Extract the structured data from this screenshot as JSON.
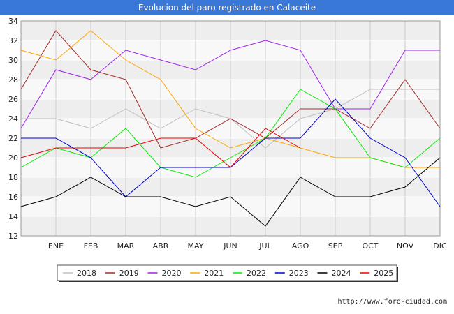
{
  "header": {
    "title": "Evolucion del paro registrado en Calaceite"
  },
  "footer": {
    "url": "http://www.foro-ciudad.com"
  },
  "chart_data": {
    "type": "line",
    "title": "Evolucion del paro registrado en Calaceite",
    "x_categories": [
      "",
      "ENE",
      "FEB",
      "MAR",
      "ABR",
      "MAY",
      "JUN",
      "JUL",
      "AGO",
      "SEP",
      "OCT",
      "NOV",
      "DIC"
    ],
    "ylim": [
      12,
      34
    ],
    "yticks": [
      12,
      14,
      16,
      18,
      20,
      22,
      24,
      26,
      28,
      30,
      32,
      34
    ],
    "grid": true,
    "legend_position": "bottom",
    "series": [
      {
        "name": "2018",
        "color": "#c0c0c0",
        "values": [
          24,
          24,
          23,
          25,
          23,
          25,
          24,
          21,
          24,
          25,
          27,
          27,
          27
        ]
      },
      {
        "name": "2019",
        "color": "#a52a2a",
        "values": [
          27,
          33,
          29,
          28,
          21,
          22,
          24,
          22,
          25,
          25,
          23,
          28,
          23
        ]
      },
      {
        "name": "2020",
        "color": "#a020f0",
        "values": [
          23,
          29,
          28,
          31,
          30,
          29,
          31,
          32,
          31,
          25,
          25,
          31,
          31
        ]
      },
      {
        "name": "2021",
        "color": "#ffa500",
        "values": [
          31,
          30,
          33,
          30,
          28,
          23,
          21,
          22,
          21,
          20,
          20,
          19,
          19
        ]
      },
      {
        "name": "2022",
        "color": "#00ee00",
        "values": [
          19,
          21,
          20,
          23,
          19,
          18,
          20,
          22,
          27,
          25,
          20,
          19,
          22
        ]
      },
      {
        "name": "2023",
        "color": "#0000cd",
        "values": [
          22,
          22,
          20,
          16,
          19,
          19,
          19,
          22,
          22,
          26,
          22,
          20,
          15
        ]
      },
      {
        "name": "2024",
        "color": "#000000",
        "values": [
          15,
          16,
          18,
          16,
          16,
          15,
          16,
          13,
          18,
          16,
          16,
          17,
          20
        ]
      },
      {
        "name": "2025",
        "color": "#ee0000",
        "values": [
          20,
          21,
          21,
          21,
          22,
          22,
          19,
          23,
          21,
          null,
          null,
          null,
          null
        ]
      }
    ]
  }
}
